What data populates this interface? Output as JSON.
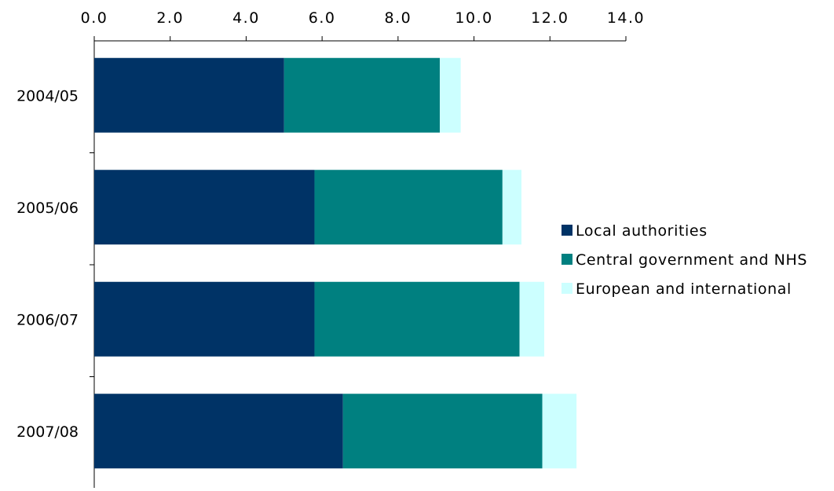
{
  "chart_data": {
    "type": "bar",
    "orientation": "horizontal",
    "stacked": true,
    "title": "",
    "xlabel": "",
    "ylabel": "",
    "xlim": [
      0,
      14
    ],
    "x_axis_position": "top",
    "x_ticks": [
      "0.0",
      "2.0",
      "4.0",
      "6.0",
      "8.0",
      "10.0",
      "12.0",
      "14.0"
    ],
    "x_tick_values": [
      0,
      2,
      4,
      6,
      8,
      10,
      12,
      14
    ],
    "categories": [
      "2004/05",
      "2005/06",
      "2006/07",
      "2007/08"
    ],
    "series": [
      {
        "name": "Local authorities",
        "color": "#003366",
        "values": [
          5.0,
          5.8,
          5.8,
          6.55
        ]
      },
      {
        "name": "Central government and NHS",
        "color": "#008080",
        "values": [
          4.1,
          4.95,
          5.4,
          5.25
        ]
      },
      {
        "name": "European and international",
        "color": "#CCFFFF",
        "values": [
          0.55,
          0.5,
          0.65,
          0.9
        ]
      }
    ],
    "grid": false,
    "legend": "right"
  }
}
